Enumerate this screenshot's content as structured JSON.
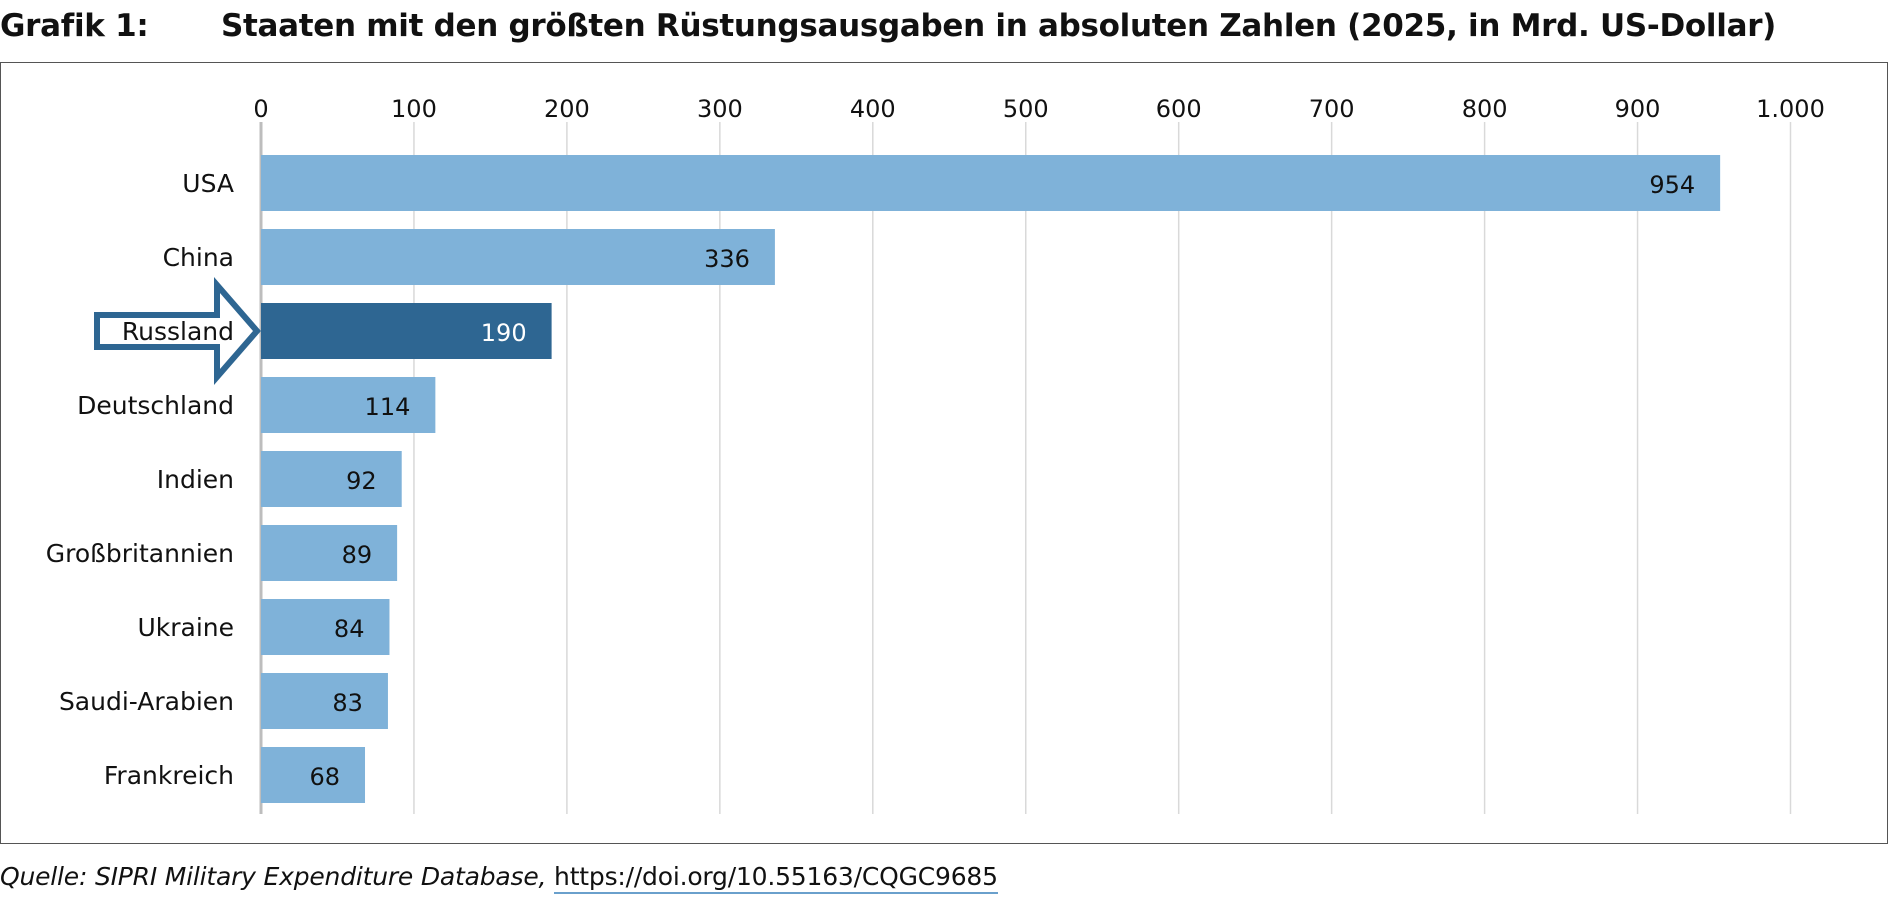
{
  "figure": {
    "number": "Grafik 1:",
    "title": "Staaten mit den größten Rüstungsausgaben in absoluten Zahlen (2025, in Mrd. US-Dollar)"
  },
  "source": {
    "text": "Quelle: SIPRI Military Expenditure Database,",
    "link": "https://doi.org/10.55163/CQGC9685"
  },
  "chart_data": {
    "type": "bar",
    "orientation": "horizontal",
    "categories": [
      "USA",
      "China",
      "Russland",
      "Deutschland",
      "Indien",
      "Großbritannien",
      "Ukraine",
      "Saudi-Arabien",
      "Frankreich"
    ],
    "values": [
      954,
      336,
      190,
      114,
      92,
      89,
      84,
      83,
      68
    ],
    "data_labels": [
      "954",
      "336",
      "190",
      "114",
      "92",
      "89",
      "84",
      "83",
      "68"
    ],
    "xticks": [
      0,
      100,
      200,
      300,
      400,
      500,
      600,
      700,
      800,
      900,
      1000
    ],
    "xtick_labels": [
      "0",
      "100",
      "200",
      "300",
      "400",
      "500",
      "600",
      "700",
      "800",
      "900",
      "1.000"
    ],
    "xlim": [
      0,
      1000
    ],
    "xaxis_position": "top",
    "grid": true,
    "highlight": "Russland",
    "highlight_marker": "arrow",
    "colors": {
      "bar": "#7fb2d9",
      "highlight": "#2e6692",
      "grid": "#d9d9d9",
      "label_dark": "#111111",
      "label_light": "#ffffff",
      "arrow_border": "#2e6692"
    }
  }
}
